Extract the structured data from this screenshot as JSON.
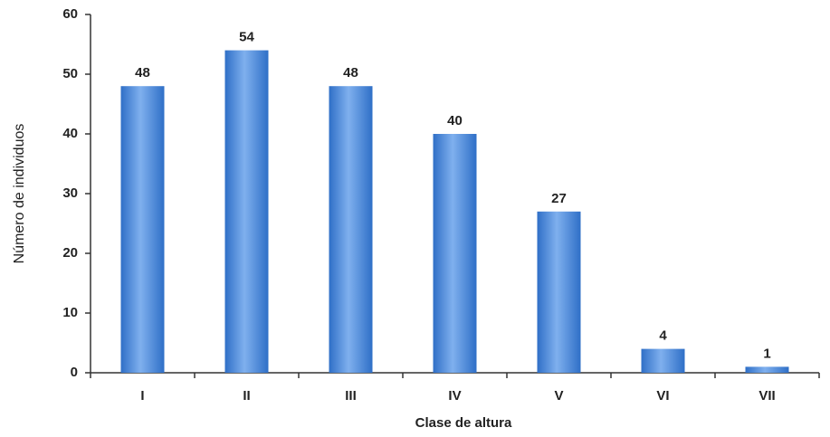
{
  "chart_data": {
    "type": "bar",
    "x_label": "Clase de  altura",
    "y_label": "Número de individuos",
    "categories": [
      "I",
      "II",
      "III",
      "IV",
      "V",
      "VI",
      "VII"
    ],
    "values": [
      48,
      54,
      48,
      40,
      27,
      4,
      1
    ],
    "color": "#2f6fc7",
    "ylim": [
      0,
      60
    ],
    "yticks": [
      0,
      10,
      20,
      30,
      40,
      50,
      60
    ],
    "grid": false
  }
}
